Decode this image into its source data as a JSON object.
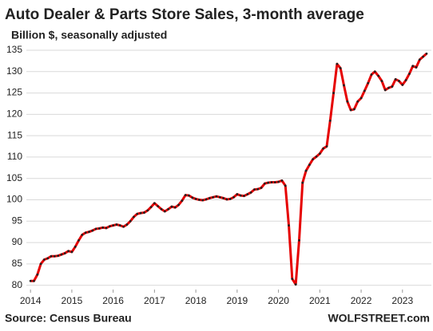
{
  "chart_data": {
    "type": "line",
    "title": "Auto Dealer & Parts Store Sales, 3-month average",
    "subtitle": "Billion $, seasonally adjusted",
    "source": "Source: Census Bureau",
    "brand": "WOLFSTREET.com",
    "x": [
      2014,
      2014.083,
      2014.167,
      2014.25,
      2014.333,
      2014.417,
      2014.5,
      2014.583,
      2014.667,
      2014.75,
      2014.833,
      2014.917,
      2015,
      2015.083,
      2015.167,
      2015.25,
      2015.333,
      2015.417,
      2015.5,
      2015.583,
      2015.667,
      2015.75,
      2015.833,
      2015.917,
      2016,
      2016.083,
      2016.167,
      2016.25,
      2016.333,
      2016.417,
      2016.5,
      2016.583,
      2016.667,
      2016.75,
      2016.833,
      2016.917,
      2017,
      2017.083,
      2017.167,
      2017.25,
      2017.333,
      2017.417,
      2017.5,
      2017.583,
      2017.667,
      2017.75,
      2017.833,
      2017.917,
      2018,
      2018.083,
      2018.167,
      2018.25,
      2018.333,
      2018.417,
      2018.5,
      2018.583,
      2018.667,
      2018.75,
      2018.833,
      2018.917,
      2019,
      2019.083,
      2019.167,
      2019.25,
      2019.333,
      2019.417,
      2019.5,
      2019.583,
      2019.667,
      2019.75,
      2019.833,
      2019.917,
      2020,
      2020.083,
      2020.167,
      2020.25,
      2020.333,
      2020.417,
      2020.5,
      2020.583,
      2020.667,
      2020.75,
      2020.833,
      2020.917,
      2021,
      2021.083,
      2021.167,
      2021.25,
      2021.333,
      2021.417,
      2021.5,
      2021.583,
      2021.667,
      2021.75,
      2021.833,
      2021.917,
      2022,
      2022.083,
      2022.167,
      2022.25,
      2022.333,
      2022.417,
      2022.5,
      2022.583,
      2022.667,
      2022.75,
      2022.833,
      2022.917,
      2023,
      2023.083,
      2023.167,
      2023.25,
      2023.333,
      2023.417,
      2023.5,
      2023.583
    ],
    "series": [
      {
        "name": "Auto Dealer & Parts Store Sales",
        "color": "#e60000",
        "marker_color": "#222222",
        "values": [
          81,
          81,
          82.5,
          85,
          86,
          86.3,
          86.8,
          86.8,
          86.9,
          87.2,
          87.5,
          88,
          87.8,
          89,
          90.5,
          91.8,
          92.3,
          92.5,
          92.8,
          93.2,
          93.3,
          93.5,
          93.4,
          93.8,
          94,
          94.2,
          94,
          93.7,
          94.2,
          95,
          96,
          96.7,
          96.9,
          97,
          97.5,
          98.3,
          99.2,
          98.5,
          97.8,
          97.3,
          97.8,
          98.4,
          98.2,
          98.8,
          99.8,
          101.1,
          101,
          100.5,
          100.2,
          100,
          99.9,
          100.1,
          100.4,
          100.6,
          100.8,
          100.6,
          100.4,
          100.1,
          100.2,
          100.6,
          101.3,
          101,
          100.9,
          101.3,
          101.7,
          102.4,
          102.5,
          102.8,
          103.8,
          104,
          104.1,
          104.1,
          104.2,
          104.5,
          103.3,
          94,
          81.5,
          80.2,
          90.5,
          104,
          106.8,
          108.2,
          109.5,
          110.1,
          110.8,
          112,
          112.5,
          118.5,
          125,
          131.8,
          130.8,
          126.8,
          123,
          121,
          121.2,
          123,
          123.8,
          125.5,
          127.3,
          129.3,
          130,
          129,
          127.8,
          125.7,
          126.2,
          126.5,
          128.2,
          127.8,
          126.9,
          128,
          129.5,
          131.3,
          131,
          132.8,
          133.5,
          134.2
        ]
      }
    ],
    "xlim": [
      2013.9,
      2023.7
    ],
    "xticks": [
      2014,
      2015,
      2016,
      2017,
      2018,
      2019,
      2020,
      2021,
      2022,
      2023
    ],
    "ylim": [
      79,
      135
    ],
    "yticks": [
      80,
      85,
      90,
      95,
      100,
      105,
      110,
      115,
      120,
      125,
      130,
      135
    ],
    "grid": true
  }
}
